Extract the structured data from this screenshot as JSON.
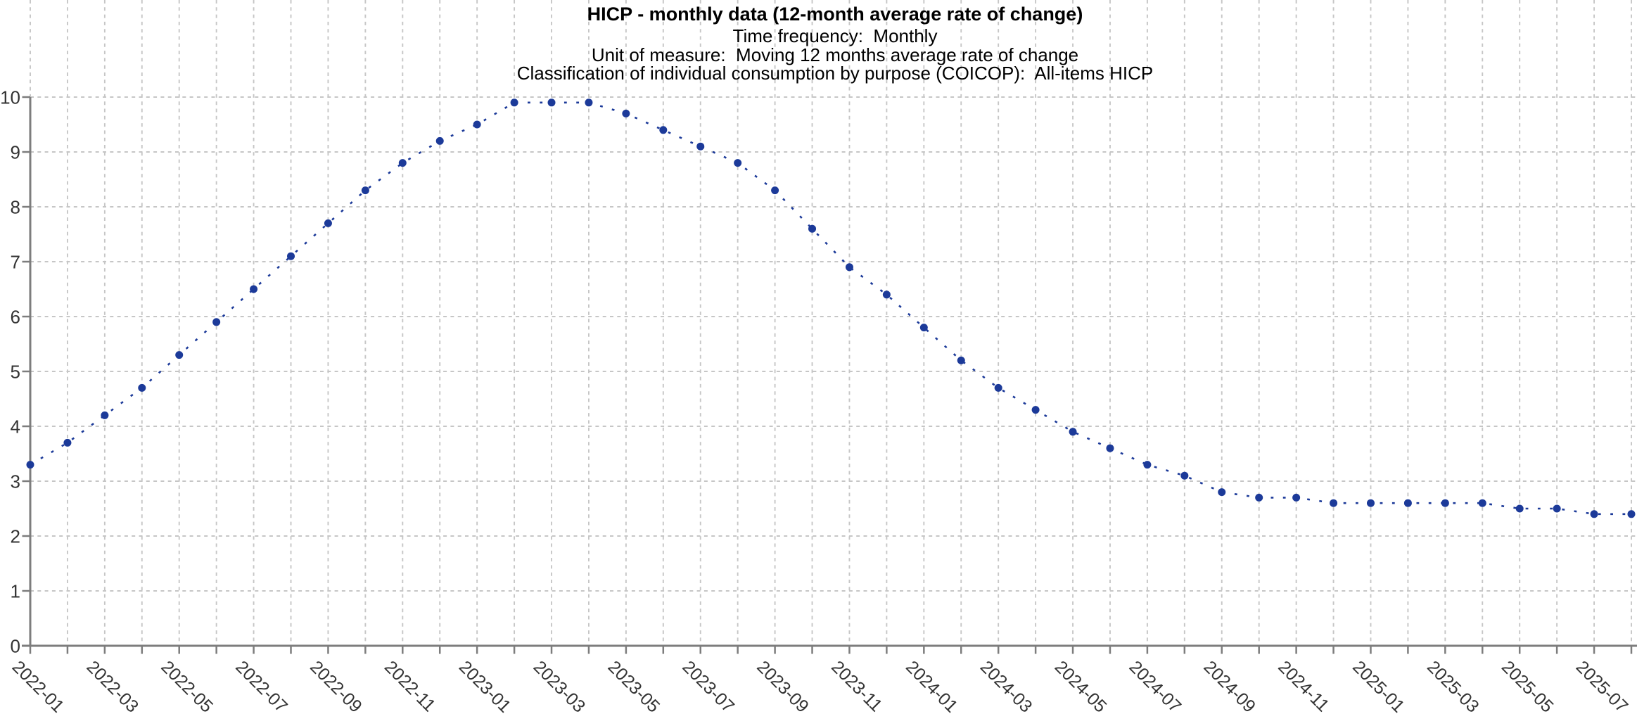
{
  "colors": {
    "series": "#1c3a99",
    "gridline": "#c6c6c6",
    "axis": "#7d7d7d",
    "tick_label": "#333333",
    "title_text": "#000000"
  },
  "chart_data": {
    "type": "line",
    "title": "HICP - monthly data (12-month average rate of change)",
    "subtitles": [
      "Time frequency:  Monthly",
      "Unit of measure:  Moving 12 months average rate of change",
      "Classification of individual consumption by purpose (COICOP):  All-items HICP"
    ],
    "line_style": "dotted",
    "marker": "circle",
    "grid": true,
    "legend": "none",
    "xlabel": "",
    "ylabel": "",
    "ylim": [
      0,
      10
    ],
    "y_ticks": [
      0,
      1,
      2,
      3,
      4,
      5,
      6,
      7,
      8,
      9,
      10
    ],
    "x_tick_label_every": 2,
    "x_tick_labels_shown": [
      "2022-01",
      "2022-03",
      "2022-05",
      "2022-07",
      "2022-09",
      "2022-11",
      "2023-01",
      "2023-03",
      "2023-05",
      "2023-07",
      "2023-09",
      "2023-11",
      "2024-01",
      "2024-03",
      "2024-05",
      "2024-07",
      "2024-09",
      "2024-11",
      "2025-01",
      "2025-03",
      "2025-05",
      "2025-07"
    ],
    "x": [
      "2022-01",
      "2022-02",
      "2022-03",
      "2022-04",
      "2022-05",
      "2022-06",
      "2022-07",
      "2022-08",
      "2022-09",
      "2022-10",
      "2022-11",
      "2022-12",
      "2023-01",
      "2023-02",
      "2023-03",
      "2023-04",
      "2023-05",
      "2023-06",
      "2023-07",
      "2023-08",
      "2023-09",
      "2023-10",
      "2023-11",
      "2023-12",
      "2024-01",
      "2024-02",
      "2024-03",
      "2024-04",
      "2024-05",
      "2024-06",
      "2024-07",
      "2024-08",
      "2024-09",
      "2024-10",
      "2024-11",
      "2024-12",
      "2025-01",
      "2025-02",
      "2025-03",
      "2025-04",
      "2025-05",
      "2025-06",
      "2025-07",
      "2025-08"
    ],
    "values": [
      3.3,
      3.7,
      4.2,
      4.7,
      5.3,
      5.9,
      6.5,
      7.1,
      7.7,
      8.3,
      8.8,
      9.2,
      9.5,
      9.9,
      9.9,
      9.9,
      9.7,
      9.4,
      9.1,
      8.8,
      8.3,
      7.6,
      6.9,
      6.4,
      5.8,
      5.2,
      4.7,
      4.3,
      3.9,
      3.6,
      3.3,
      3.1,
      2.8,
      2.7,
      2.7,
      2.6,
      2.6,
      2.6,
      2.6,
      2.6,
      2.5,
      2.5,
      2.4,
      2.4
    ]
  }
}
